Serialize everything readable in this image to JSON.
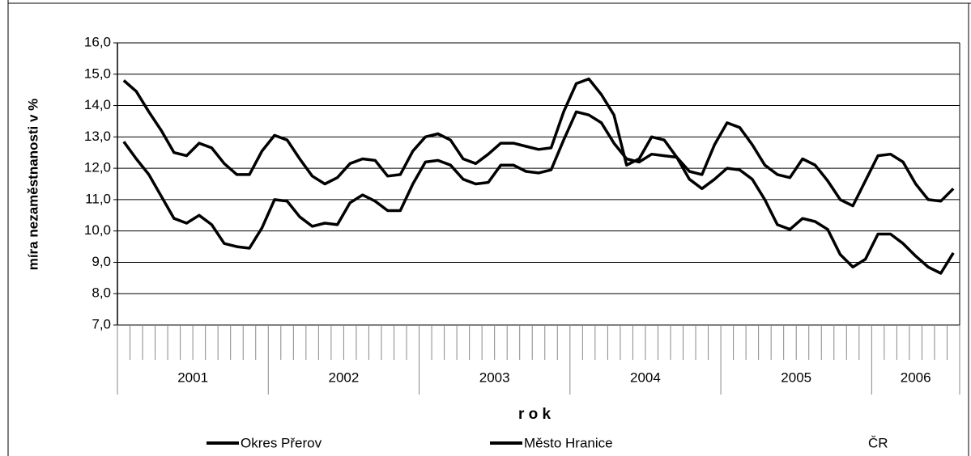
{
  "chart_data": {
    "type": "line",
    "x_label": "r o k",
    "y_label": "míra nezaměstnanosti v %",
    "year_groups": [
      {
        "label": "2001",
        "months": 12
      },
      {
        "label": "2002",
        "months": 12
      },
      {
        "label": "2003",
        "months": 12
      },
      {
        "label": "2004",
        "months": 12
      },
      {
        "label": "2005",
        "months": 12
      },
      {
        "label": "2006",
        "months": 7
      }
    ],
    "ylim": [
      7,
      16
    ],
    "yticks": [
      {
        "value": 7,
        "label": "7,0"
      },
      {
        "value": 8,
        "label": "8,0"
      },
      {
        "value": 9,
        "label": "9,0"
      },
      {
        "value": 10,
        "label": "10,0"
      },
      {
        "value": 11,
        "label": "11,0"
      },
      {
        "value": 12,
        "label": "12,0"
      },
      {
        "value": 13,
        "label": "13,0"
      },
      {
        "value": 14,
        "label": "14,0"
      },
      {
        "value": 15,
        "label": "15,0"
      },
      {
        "value": 16,
        "label": "16,0"
      }
    ],
    "grid": true,
    "series": [
      {
        "name": "Okres Přerov",
        "color": "#000000",
        "values": [
          14.8,
          14.45,
          13.8,
          13.2,
          12.5,
          12.4,
          12.8,
          12.65,
          12.15,
          11.8,
          11.8,
          12.55,
          13.05,
          12.9,
          12.3,
          11.75,
          11.5,
          11.7,
          12.15,
          12.3,
          12.25,
          11.75,
          11.8,
          12.55,
          13.0,
          13.1,
          12.9,
          12.3,
          12.15,
          12.45,
          12.8,
          12.8,
          12.7,
          12.6,
          12.65,
          13.8,
          14.7,
          14.85,
          14.35,
          13.7,
          12.1,
          12.3,
          13.0,
          12.9,
          12.35,
          11.9,
          11.8,
          12.75,
          13.45,
          13.3,
          12.75,
          12.1,
          11.8,
          11.7,
          12.3,
          12.1,
          11.6,
          11.0,
          10.8,
          11.6,
          12.4,
          12.45,
          12.2,
          11.5,
          11.0,
          10.95,
          11.35
        ]
      },
      {
        "name": "Město Hranice",
        "color": "#000000",
        "values": [
          12.85,
          12.3,
          11.8,
          11.1,
          10.4,
          10.25,
          10.5,
          10.2,
          9.6,
          9.5,
          9.45,
          10.1,
          11.0,
          10.95,
          10.45,
          10.15,
          10.25,
          10.2,
          10.9,
          11.15,
          10.95,
          10.65,
          10.65,
          11.5,
          12.2,
          12.25,
          12.1,
          11.65,
          11.5,
          11.55,
          12.1,
          12.1,
          11.9,
          11.85,
          11.95,
          12.9,
          13.8,
          13.7,
          13.45,
          12.8,
          12.3,
          12.2,
          12.45,
          12.4,
          12.35,
          11.65,
          11.35,
          11.65,
          12.0,
          11.95,
          11.65,
          11.0,
          10.2,
          10.05,
          10.4,
          10.3,
          10.05,
          9.25,
          8.85,
          9.1,
          9.9,
          9.9,
          9.6,
          9.2,
          8.85,
          8.65,
          9.3
        ]
      },
      {
        "name": "ČR",
        "color": "#ffffff",
        "values": [
          null,
          null,
          null,
          null,
          null,
          null,
          null,
          null,
          null,
          null,
          null,
          null,
          null,
          null,
          null,
          null,
          null,
          null,
          null,
          null,
          null,
          null,
          null,
          null,
          null,
          null,
          null,
          null,
          null,
          null,
          null,
          null,
          null,
          null,
          null,
          null,
          null,
          null,
          null,
          null,
          null,
          null,
          null,
          null,
          null,
          null,
          null,
          null,
          null,
          null,
          null,
          null,
          null,
          null,
          null,
          null,
          null,
          null,
          null,
          null,
          null,
          null,
          null,
          null,
          null,
          null,
          null
        ]
      }
    ]
  }
}
